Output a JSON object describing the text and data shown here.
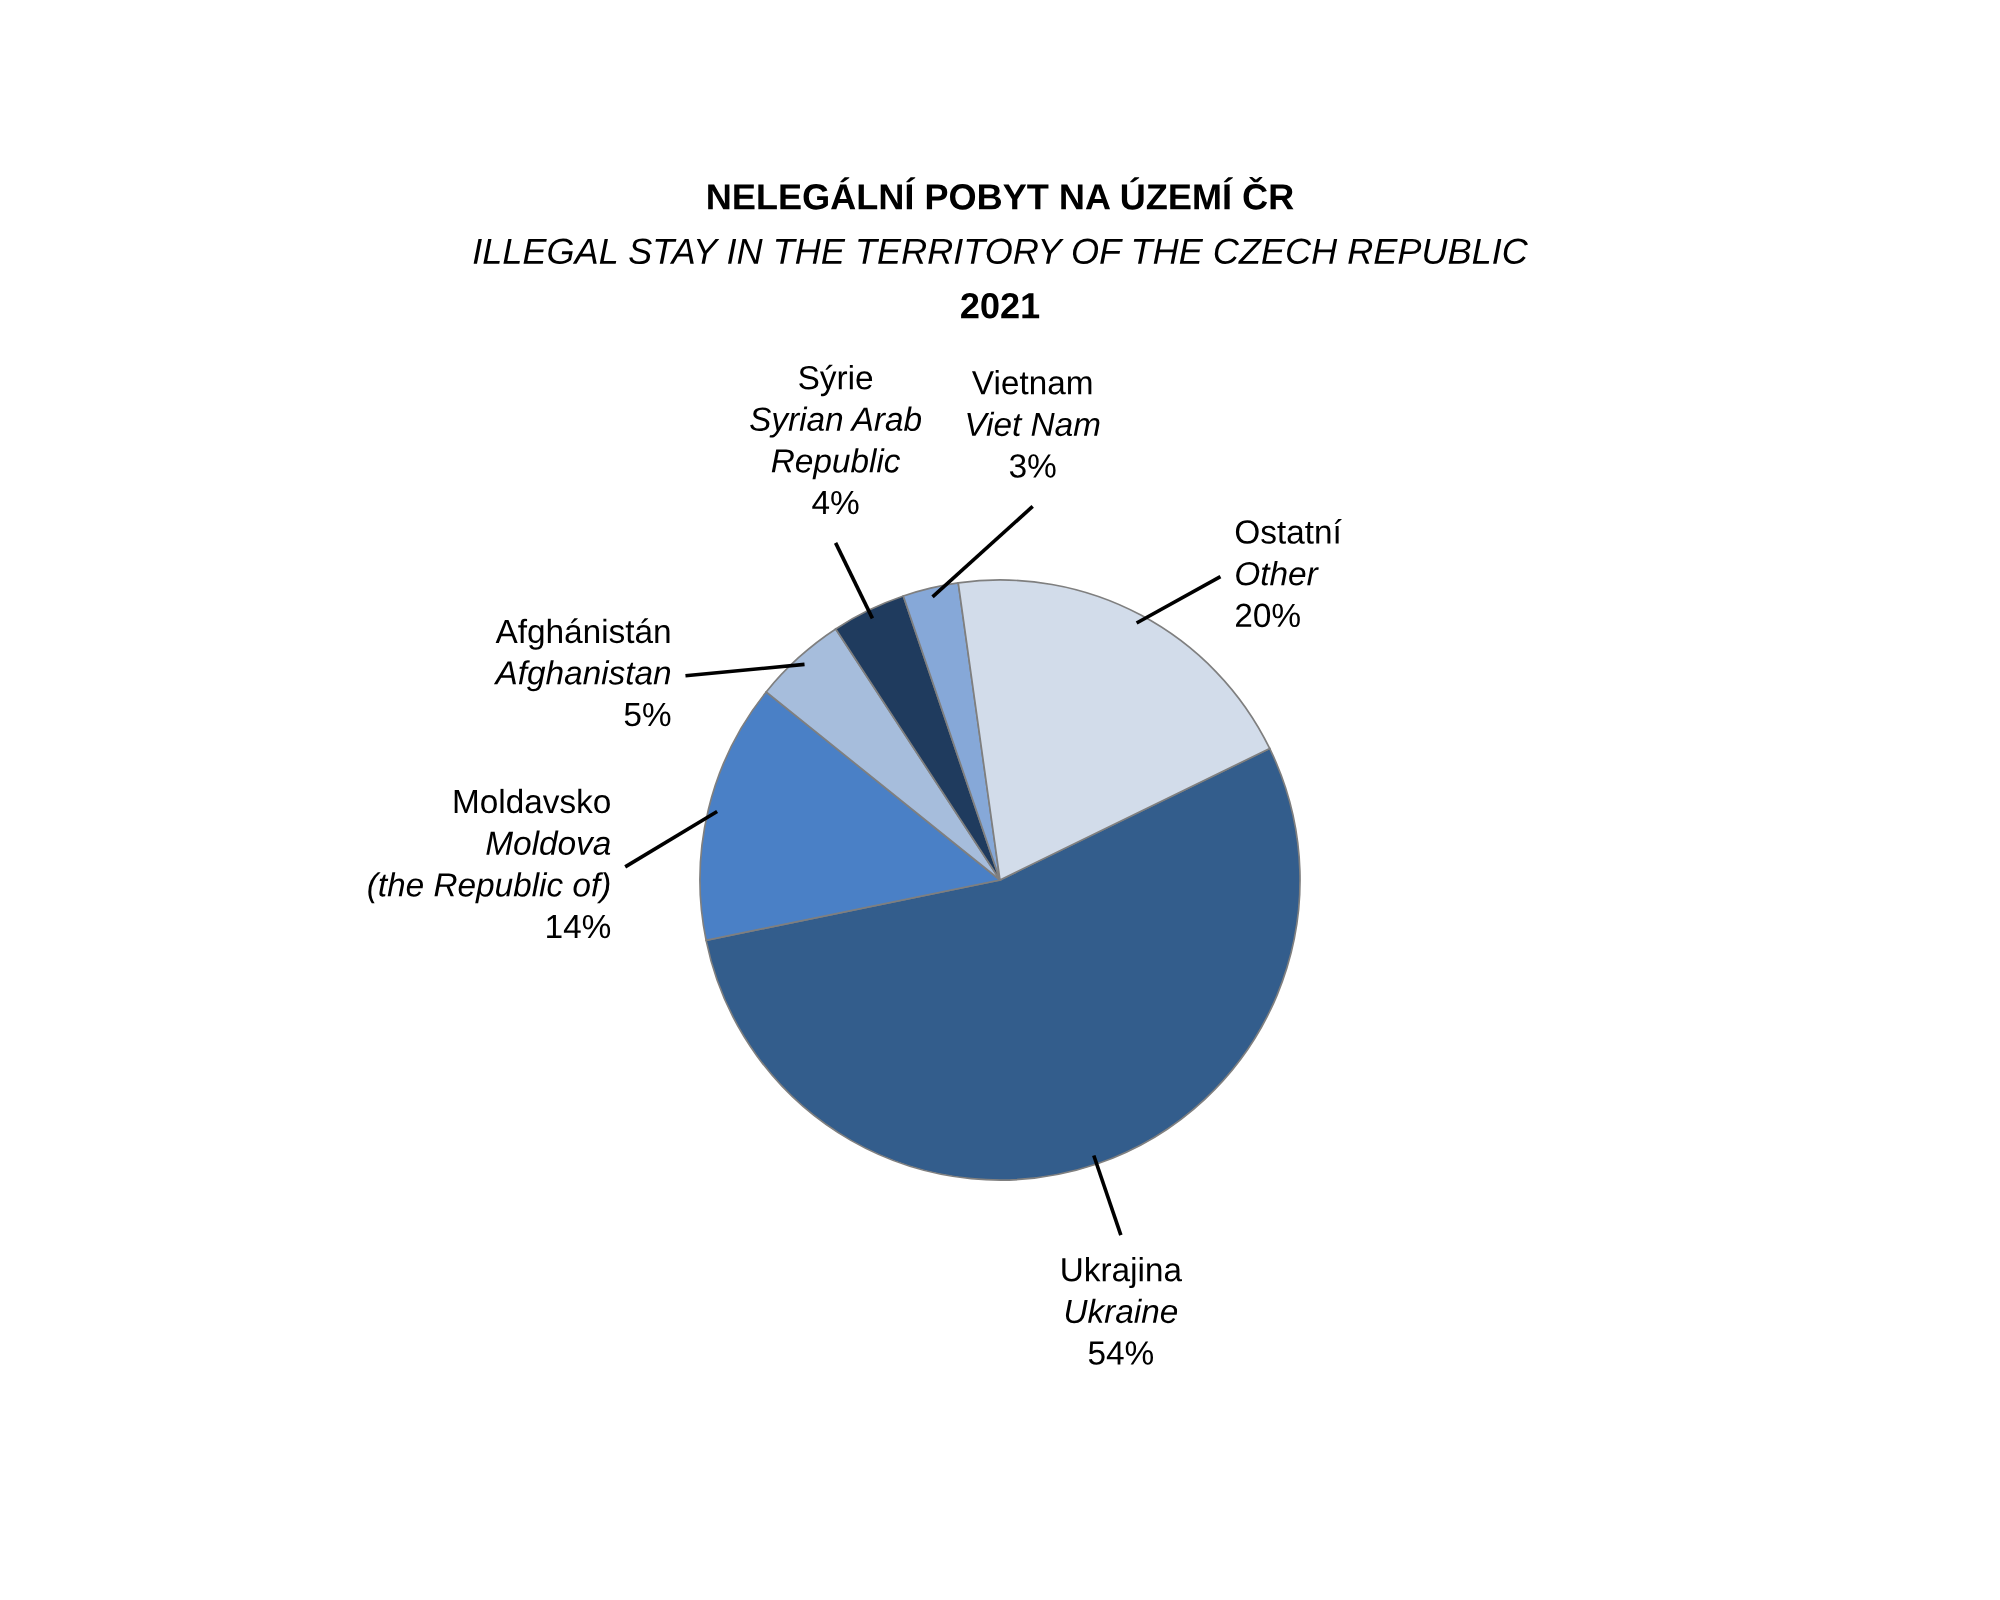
{
  "chart_data": {
    "type": "pie",
    "title": "NELEGÁLNÍ POBYT NA ÚZEMÍ ČR\nILLEGAL STAY IN THE TERRITORY OF THE CZECH REPUBLIC\n2021",
    "categories": [
      "Ukrajina\nUkraine",
      "Moldavsko\nMoldova\n(the Republic of)",
      "Afghánistán\nAfghanistan",
      "Sýrie\nSyrian Arab\nRepublic",
      "Vietnam\nViet Nam",
      "Ostatní\nOther"
    ],
    "values": [
      54,
      14,
      5,
      4,
      3,
      20
    ],
    "colors": [
      "#335d8c",
      "#4a80c6",
      "#a6bddc",
      "#1f3b5e",
      "#86a8d8",
      "#d2dcea"
    ],
    "value_labels": [
      "54%",
      "14%",
      "5%",
      "4%",
      "3%",
      "20%"
    ]
  }
}
